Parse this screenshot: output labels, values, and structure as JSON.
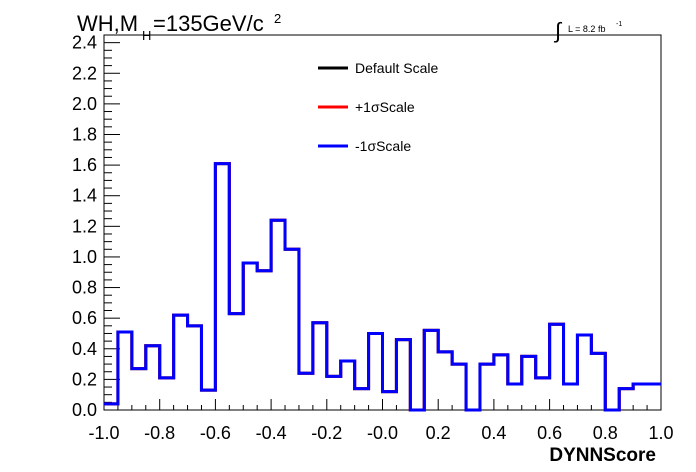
{
  "chart_data": {
    "type": "line",
    "title_main": "WH,M",
    "title_sub": "H",
    "title_rest": "=135GeV/c",
    "title_sup": "2",
    "lumi_text": "L = 8.2 fb",
    "lumi_sup": "-1",
    "lumi_integral": "∫",
    "xlabel": "DYNNScore",
    "ylabel": "",
    "xlim": [
      -1.0,
      1.0
    ],
    "ylim": [
      0.0,
      2.45
    ],
    "x_ticks": [
      "-1.0",
      "-0.8",
      "-0.6",
      "-0.4",
      "-0.2",
      "-0.0",
      "0.2",
      "0.4",
      "0.6",
      "0.8",
      "1.0"
    ],
    "x_tick_values": [
      -1.0,
      -0.8,
      -0.6,
      -0.4,
      -0.2,
      0.0,
      0.2,
      0.4,
      0.6,
      0.8,
      1.0
    ],
    "y_ticks": [
      "0.0",
      "0.2",
      "0.4",
      "0.6",
      "0.8",
      "1.0",
      "1.2",
      "1.4",
      "1.6",
      "1.8",
      "2.0",
      "2.2",
      "2.4"
    ],
    "y_tick_values": [
      0.0,
      0.2,
      0.4,
      0.6,
      0.8,
      1.0,
      1.2,
      1.4,
      1.6,
      1.8,
      2.0,
      2.2,
      2.4
    ],
    "bin_edges": [
      -1.0,
      -0.95,
      -0.9,
      -0.85,
      -0.8,
      -0.75,
      -0.7,
      -0.65,
      -0.6,
      -0.55,
      -0.5,
      -0.45,
      -0.4,
      -0.35,
      -0.3,
      -0.25,
      -0.2,
      -0.15,
      -0.1,
      -0.05,
      0.0,
      0.05,
      0.1,
      0.15,
      0.2,
      0.25,
      0.3,
      0.35,
      0.4,
      0.45,
      0.5,
      0.55,
      0.6,
      0.65,
      0.7,
      0.75,
      0.8,
      0.85,
      0.9,
      0.95,
      1.0
    ],
    "series": [
      {
        "name": "Default Scale",
        "color": "#000000",
        "values": [
          0.04,
          0.51,
          0.27,
          0.42,
          0.21,
          0.62,
          0.55,
          0.13,
          1.61,
          0.63,
          0.96,
          0.91,
          1.24,
          1.05,
          0.24,
          0.57,
          0.22,
          0.32,
          0.14,
          0.5,
          0.12,
          0.46,
          0.0,
          0.52,
          0.38,
          0.3,
          0.0,
          0.3,
          0.36,
          0.17,
          0.35,
          0.21,
          0.56,
          0.17,
          0.49,
          0.37,
          0.0,
          0.14,
          0.17,
          0.17
        ]
      },
      {
        "name": "+1σScale",
        "color": "#ff0000",
        "values": [
          0.04,
          0.51,
          0.27,
          0.42,
          0.21,
          0.62,
          0.55,
          0.13,
          1.61,
          0.63,
          0.96,
          0.91,
          1.24,
          1.05,
          0.24,
          0.57,
          0.22,
          0.32,
          0.14,
          0.5,
          0.12,
          0.46,
          0.0,
          0.52,
          0.38,
          0.3,
          0.0,
          0.3,
          0.36,
          0.17,
          0.35,
          0.21,
          0.56,
          0.17,
          0.49,
          0.37,
          0.0,
          0.14,
          0.17,
          0.17
        ]
      },
      {
        "name": "-1σScale",
        "color": "#0000ff",
        "values": [
          0.04,
          0.51,
          0.27,
          0.42,
          0.21,
          0.62,
          0.55,
          0.13,
          1.61,
          0.63,
          0.96,
          0.91,
          1.24,
          1.05,
          0.24,
          0.57,
          0.22,
          0.32,
          0.14,
          0.5,
          0.12,
          0.46,
          0.0,
          0.52,
          0.38,
          0.3,
          0.0,
          0.3,
          0.36,
          0.17,
          0.35,
          0.21,
          0.56,
          0.17,
          0.49,
          0.37,
          0.0,
          0.14,
          0.17,
          0.17
        ]
      }
    ],
    "legend": {
      "placement": "top-center",
      "entries": [
        {
          "label": "Default Scale",
          "color": "#000000"
        },
        {
          "label": "+1σScale",
          "color": "#ff0000"
        },
        {
          "label": "-1σScale",
          "color": "#0000ff"
        }
      ]
    },
    "grid": false
  }
}
